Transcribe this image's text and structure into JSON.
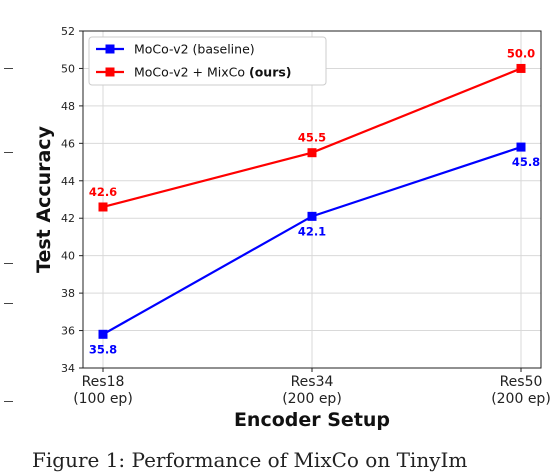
{
  "chart_data": {
    "type": "line",
    "xlabel": "Encoder Setup",
    "ylabel": "Test Accuracy",
    "categories": [
      "Res18\n(100 ep)",
      "Res34\n(200 ep)",
      "Res50\n(200 ep)"
    ],
    "ylim": [
      34,
      52
    ],
    "yticks": [
      34,
      36,
      38,
      40,
      42,
      44,
      46,
      48,
      50,
      52
    ],
    "grid": true,
    "legend_position": "top-left",
    "series": [
      {
        "name": "MoCo-v2 (baseline)",
        "name_bold_suffix": "",
        "color": "#0000ff",
        "values": [
          35.8,
          42.1,
          45.8
        ],
        "labels": [
          "35.8",
          "42.1",
          "45.8"
        ]
      },
      {
        "name": "MoCo-v2 + MixCo ",
        "name_bold_suffix": "(ours)",
        "color": "#ff0000",
        "values": [
          42.6,
          45.5,
          50.0
        ],
        "labels": [
          "42.6",
          "45.5",
          "50.0"
        ]
      }
    ]
  },
  "caption": "Figure 1:   Performance of MixCo on TinyIm"
}
